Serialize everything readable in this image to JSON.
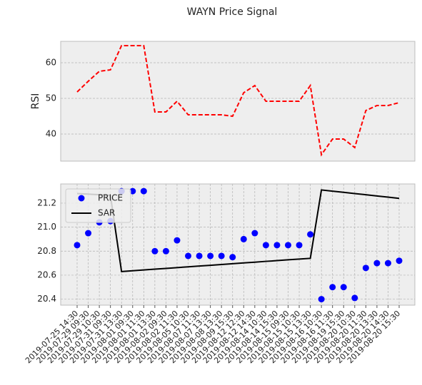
{
  "title": "WAYN Price Signal",
  "chart_data": [
    {
      "type": "line",
      "ylabel": "RSI",
      "color": "#ff0000",
      "linestyle": "dashed",
      "grid": true,
      "values": [
        51.8,
        54.8,
        57.6,
        58,
        64.8,
        64.8,
        64.8,
        46.2,
        46.2,
        49.2,
        45.4,
        45.4,
        45.4,
        45.4,
        45,
        51.6,
        53.6,
        49.2,
        49.2,
        49.2,
        49.2,
        53.6,
        34.2,
        38.6,
        38.6,
        36.2,
        46.6,
        48,
        48,
        48.8
      ],
      "ylim": [
        32.4,
        66
      ],
      "yticks": [
        40,
        50,
        60
      ]
    },
    {
      "type": "combo",
      "grid": true,
      "legend": "upper left",
      "categories": [
        "2019-07-25 14:30",
        "2019-07-29 09:30",
        "2019-07-29 10:30",
        "2019-07-31 09:30",
        "2019-07-31 13:30",
        "2019-08-01 09:30",
        "2019-08-01 11:30",
        "2019-08-01 13:30",
        "2019-08-02 09:30",
        "2019-08-02 11:30",
        "2019-08-05 10:30",
        "2019-08-07 11:30",
        "2019-08-07 13:30",
        "2019-08-08 13:30",
        "2019-08-09 15:30",
        "2019-08-12 12:30",
        "2019-08-12 14:30",
        "2019-08-14 10:30",
        "2019-08-14 15:30",
        "2019-08-15 09:30",
        "2019-08-15 10:30",
        "2019-08-15 13:30",
        "2019-08-16 10:30",
        "2019-08-16 11:30",
        "2019-08-19 15:30",
        "2019-08-20 10:30",
        "2019-08-20 11:30",
        "2019-08-20 13:30",
        "2019-08-20 14:30",
        "2019-08-20 15:30"
      ],
      "series": [
        {
          "name": "PRICE",
          "color": "#0000ff",
          "kind": "scatter",
          "values": [
            20.85,
            20.95,
            21.04,
            21.05,
            21.3,
            21.3,
            21.3,
            20.8,
            20.8,
            20.89,
            20.76,
            20.76,
            20.76,
            20.76,
            20.75,
            20.9,
            20.95,
            20.85,
            20.85,
            20.85,
            20.85,
            20.94,
            20.4,
            20.5,
            20.5,
            20.41,
            20.66,
            20.7,
            20.7,
            20.72
          ]
        },
        {
          "name": "SAR",
          "color": "#000000",
          "kind": "line",
          "values": [
            21.28,
            21.275,
            21.27,
            21.265,
            20.63,
            20.637,
            20.643,
            20.65,
            20.656,
            20.663,
            20.669,
            20.676,
            20.682,
            20.689,
            20.695,
            20.702,
            20.708,
            20.715,
            20.721,
            20.728,
            20.734,
            20.74,
            21.31,
            21.3,
            21.29,
            21.28,
            21.27,
            21.26,
            21.25,
            21.24
          ]
        }
      ],
      "ylim": [
        20.35,
        21.36
      ],
      "yticks": [
        20.4,
        20.6,
        20.8,
        {
          "value": 21,
          "label": "21.0"
        },
        21.2
      ]
    }
  ]
}
